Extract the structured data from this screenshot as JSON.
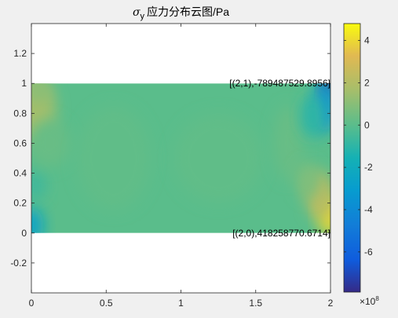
{
  "chart_data": {
    "type": "heatmap",
    "title": {
      "sigma": "σ",
      "subscript": "y",
      "rest": "应力分布云图/Pa"
    },
    "xlim": [
      0,
      2
    ],
    "ylim": [
      -0.4,
      1.4
    ],
    "x_ticks": [
      0,
      0.5,
      1,
      1.5,
      2
    ],
    "x_tick_labels": [
      "0",
      "0.5",
      "1",
      "1.5",
      "2"
    ],
    "y_ticks": [
      -0.2,
      0,
      0.2,
      0.4,
      0.6,
      0.8,
      1,
      1.2
    ],
    "y_tick_labels": [
      "-0.2",
      "0",
      "0.2",
      "0.4",
      "0.6",
      "0.8",
      "1",
      "1.2"
    ],
    "domain": {
      "x": [
        0,
        2
      ],
      "y": [
        0,
        1
      ]
    },
    "colorbar": {
      "colormap": "parula",
      "clim": [
        -7.9,
        4.8
      ],
      "ticks": [
        4,
        2,
        0,
        -2,
        -4,
        -6
      ],
      "tick_labels": [
        "4",
        "2",
        "0",
        "-2",
        "-4",
        "-6"
      ],
      "multiplier_base": "×10",
      "multiplier_exp": "8"
    },
    "annotations": [
      {
        "point": [
          2,
          1
        ],
        "text": "[(2,1),-789487529.8956]",
        "value": -789487529.8956
      },
      {
        "point": [
          2,
          0
        ],
        "text": "[(2,0),418258770.6714]",
        "value": 418258770.6714
      }
    ],
    "features": [
      {
        "x": 0.02,
        "y": 0.82,
        "value": 1.6,
        "rx": 0.14,
        "ry": 0.22
      },
      {
        "x": 0.05,
        "y": 0.95,
        "value": 1.0,
        "rx": 0.08,
        "ry": 0.08
      },
      {
        "x": 0.0,
        "y": 0.05,
        "value": -2.5,
        "rx": 0.08,
        "ry": 0.12
      },
      {
        "x": 0.02,
        "y": 0.32,
        "value": -0.6,
        "rx": 0.08,
        "ry": 0.1
      },
      {
        "x": 0.12,
        "y": 0.6,
        "value": 0.3,
        "rx": 0.14,
        "ry": 0.16
      },
      {
        "x": 0.55,
        "y": 0.5,
        "value": 0.15,
        "rx": 0.25,
        "ry": 0.35
      },
      {
        "x": 1.25,
        "y": 0.5,
        "value": 0.15,
        "rx": 0.3,
        "ry": 0.3
      },
      {
        "x": 1.72,
        "y": 0.6,
        "value": 0.3,
        "rx": 0.1,
        "ry": 0.25
      },
      {
        "x": 1.99,
        "y": 0.98,
        "value": -7.5,
        "rx": 0.05,
        "ry": 0.07
      },
      {
        "x": 1.96,
        "y": 0.85,
        "value": -3.5,
        "rx": 0.07,
        "ry": 0.18
      },
      {
        "x": 1.88,
        "y": 0.78,
        "value": -1.0,
        "rx": 0.08,
        "ry": 0.14
      },
      {
        "x": 1.99,
        "y": 0.12,
        "value": 4.0,
        "rx": 0.07,
        "ry": 0.14
      },
      {
        "x": 1.93,
        "y": 0.25,
        "value": 2.2,
        "rx": 0.09,
        "ry": 0.16
      },
      {
        "x": 1.85,
        "y": 0.35,
        "value": 0.8,
        "rx": 0.08,
        "ry": 0.12
      }
    ]
  }
}
